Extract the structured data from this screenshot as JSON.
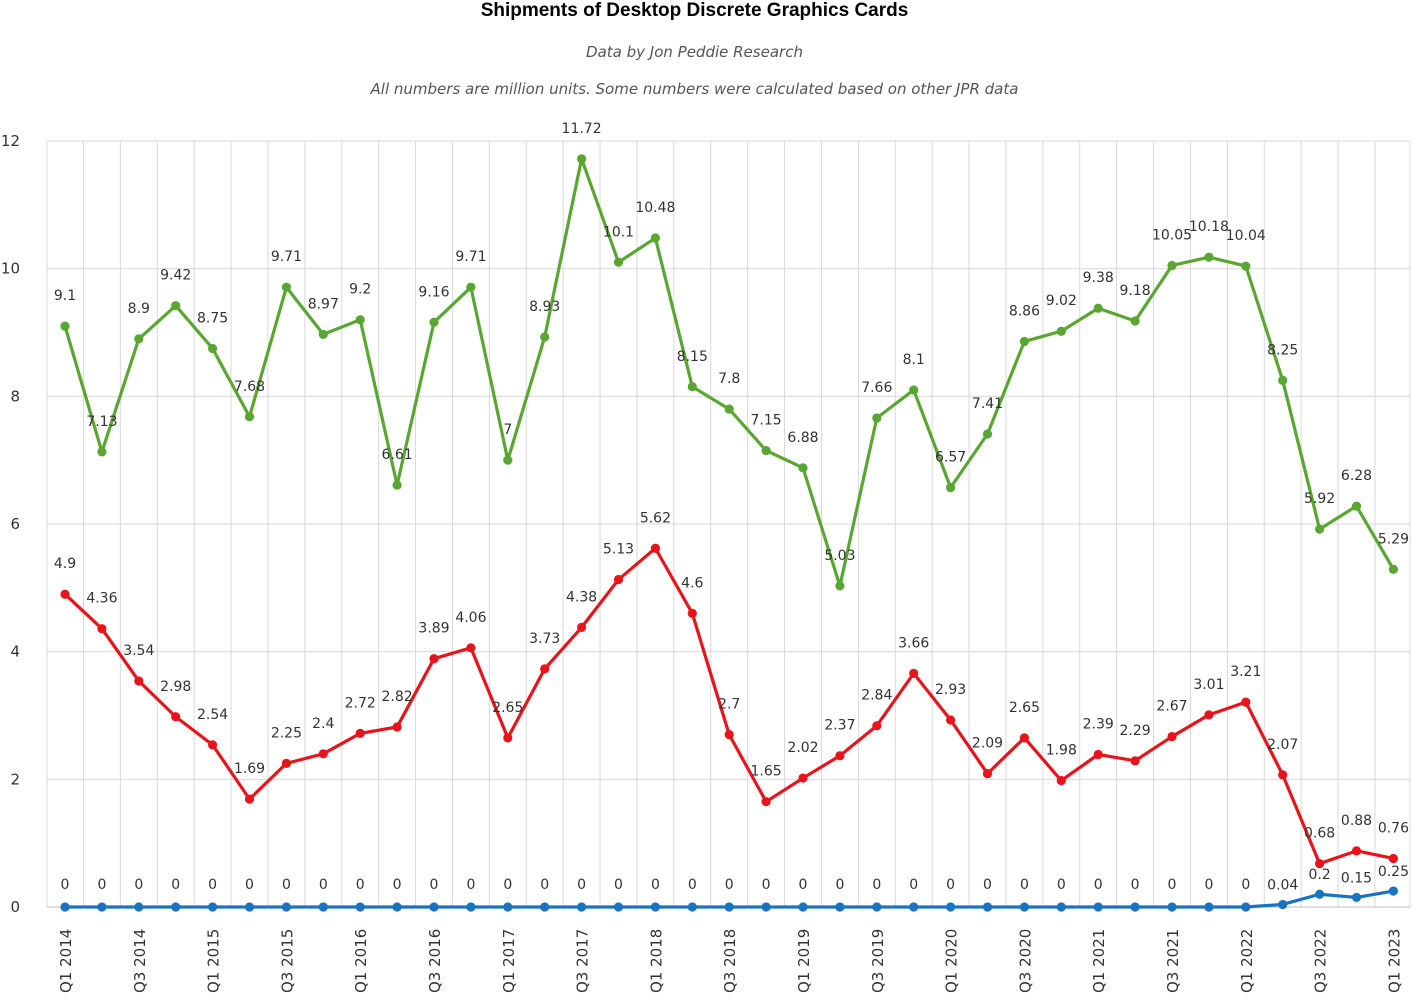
{
  "chart_data": {
    "type": "line",
    "title": "Shipments of Desktop Discrete Graphics Cards",
    "subtitle": "Data by Jon Peddie Research",
    "note": "All numbers are million units. Some numbers were calculated based on other JPR data",
    "xlabel": "",
    "ylabel": "",
    "ylim": [
      0,
      12
    ],
    "yticks": [
      0,
      2,
      4,
      6,
      8,
      10,
      12
    ],
    "grid": true,
    "legend": "none",
    "x": [
      "Q1 2014",
      "Q2 2014",
      "Q3 2014",
      "Q4 2014",
      "Q1 2015",
      "Q2 2015",
      "Q3 2015",
      "Q4 2015",
      "Q1 2016",
      "Q2 2016",
      "Q3 2016",
      "Q4 2016",
      "Q1 2017",
      "Q2 2017",
      "Q3 2017",
      "Q4 2017",
      "Q1 2018",
      "Q2 2018",
      "Q3 2018",
      "Q4 2018",
      "Q1 2019",
      "Q2 2019",
      "Q3 2019",
      "Q4 2019",
      "Q1 2020",
      "Q2 2020",
      "Q3 2020",
      "Q4 2020",
      "Q1 2021",
      "Q2 2021",
      "Q3 2021",
      "Q4 2021",
      "Q1 2022",
      "Q2 2022",
      "Q3 2022",
      "Q4 2022",
      "Q1 2023"
    ],
    "x_tick_labels": [
      "Q1 2014",
      "",
      "Q3 2014",
      "",
      "Q1 2015",
      "",
      "Q3 2015",
      "",
      "Q1 2016",
      "",
      "Q3 2016",
      "",
      "Q1 2017",
      "",
      "Q3 2017",
      "",
      "Q1 2018",
      "",
      "Q3 2018",
      "",
      "Q1 2019",
      "",
      "Q3 2019",
      "",
      "Q1 2020",
      "",
      "Q3 2020",
      "",
      "Q1 2021",
      "",
      "Q3 2021",
      "",
      "Q1 2022",
      "",
      "Q3 2022",
      "",
      "Q1 2023"
    ],
    "series": [
      {
        "color": "#5aa632",
        "values": [
          9.1,
          7.13,
          8.9,
          9.42,
          8.75,
          7.68,
          9.71,
          8.97,
          9.2,
          6.61,
          9.16,
          9.71,
          7,
          8.93,
          11.72,
          10.1,
          10.48,
          8.15,
          7.8,
          7.15,
          6.88,
          5.03,
          7.66,
          8.1,
          6.57,
          7.41,
          8.86,
          9.02,
          9.38,
          9.18,
          10.05,
          10.18,
          10.04,
          8.25,
          5.92,
          6.28,
          5.29
        ]
      },
      {
        "color": "#e8141c",
        "values": [
          4.9,
          4.36,
          3.54,
          2.98,
          2.54,
          1.69,
          2.25,
          2.4,
          2.72,
          2.82,
          3.89,
          4.06,
          2.65,
          3.73,
          4.38,
          5.13,
          5.62,
          4.6,
          2.7,
          1.65,
          2.02,
          2.37,
          2.84,
          3.66,
          2.93,
          2.09,
          2.65,
          1.98,
          2.39,
          2.29,
          2.67,
          3.01,
          3.21,
          2.07,
          0.68,
          0.88,
          0.76
        ]
      },
      {
        "color": "#1a73c0",
        "values": [
          0,
          0,
          0,
          0,
          0,
          0,
          0,
          0,
          0,
          0,
          0,
          0,
          0,
          0,
          0,
          0,
          0,
          0,
          0,
          0,
          0,
          0,
          0,
          0,
          0,
          0,
          0,
          0,
          0,
          0,
          0,
          0,
          0,
          0.04,
          0.2,
          0.15,
          0.25
        ]
      }
    ]
  }
}
